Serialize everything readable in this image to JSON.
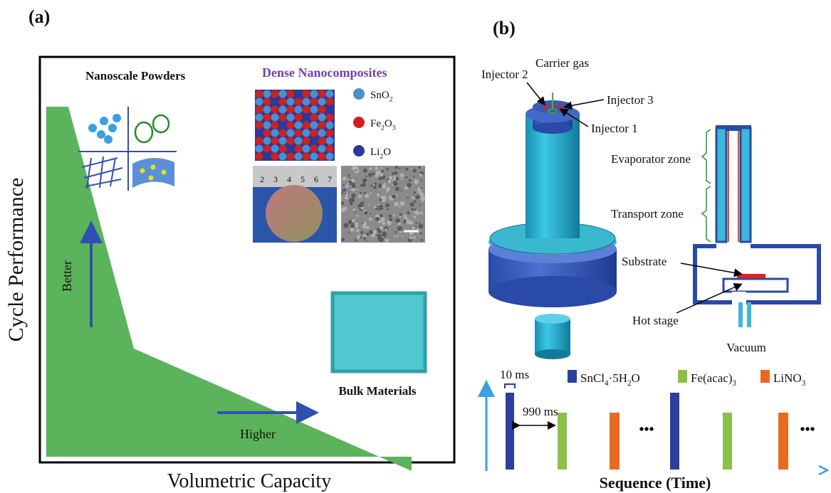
{
  "panel_a": {
    "label": "(a)",
    "nanoscale_powders": "Nanoscale Powders",
    "dense_nanocomposites": "Dense Nanocomposites",
    "legend": [
      [
        "SnO",
        "2"
      ],
      [
        "Fe",
        "2",
        "O",
        "3"
      ],
      [
        "Li",
        "2",
        "O"
      ]
    ],
    "ruler_marks": [
      "2",
      "3",
      "4",
      "5",
      "6",
      "7"
    ],
    "better": "Better",
    "higher": "Higher",
    "bulk_materials": "Bulk Materials",
    "y_axis_title": "Cycle Performance",
    "x_axis_title": "Volumetric Capacity"
  },
  "panel_b": {
    "label": "(b)",
    "injector_2": "Injector 2",
    "carrier_gas": "Carrier gas",
    "injector_3": "Injector 3",
    "injector_1": "Injector 1",
    "evaporator_zone": "Evaporator zone",
    "transport_zone": "Transport zone",
    "substrate": "Substrate",
    "hot_stage": "Hot stage",
    "vacuum": "Vacuum",
    "pulse_width": "10 ms",
    "pulse_gap": "990 ms",
    "legend": [
      [
        "SnCl",
        "4",
        "·5H",
        "2",
        "O"
      ],
      [
        "Fe(acac)",
        "3"
      ],
      [
        "LiNO",
        "3"
      ]
    ],
    "ellipsis": [
      "•••",
      "•••"
    ],
    "x_axis_title": "Sequence (Time)"
  }
}
